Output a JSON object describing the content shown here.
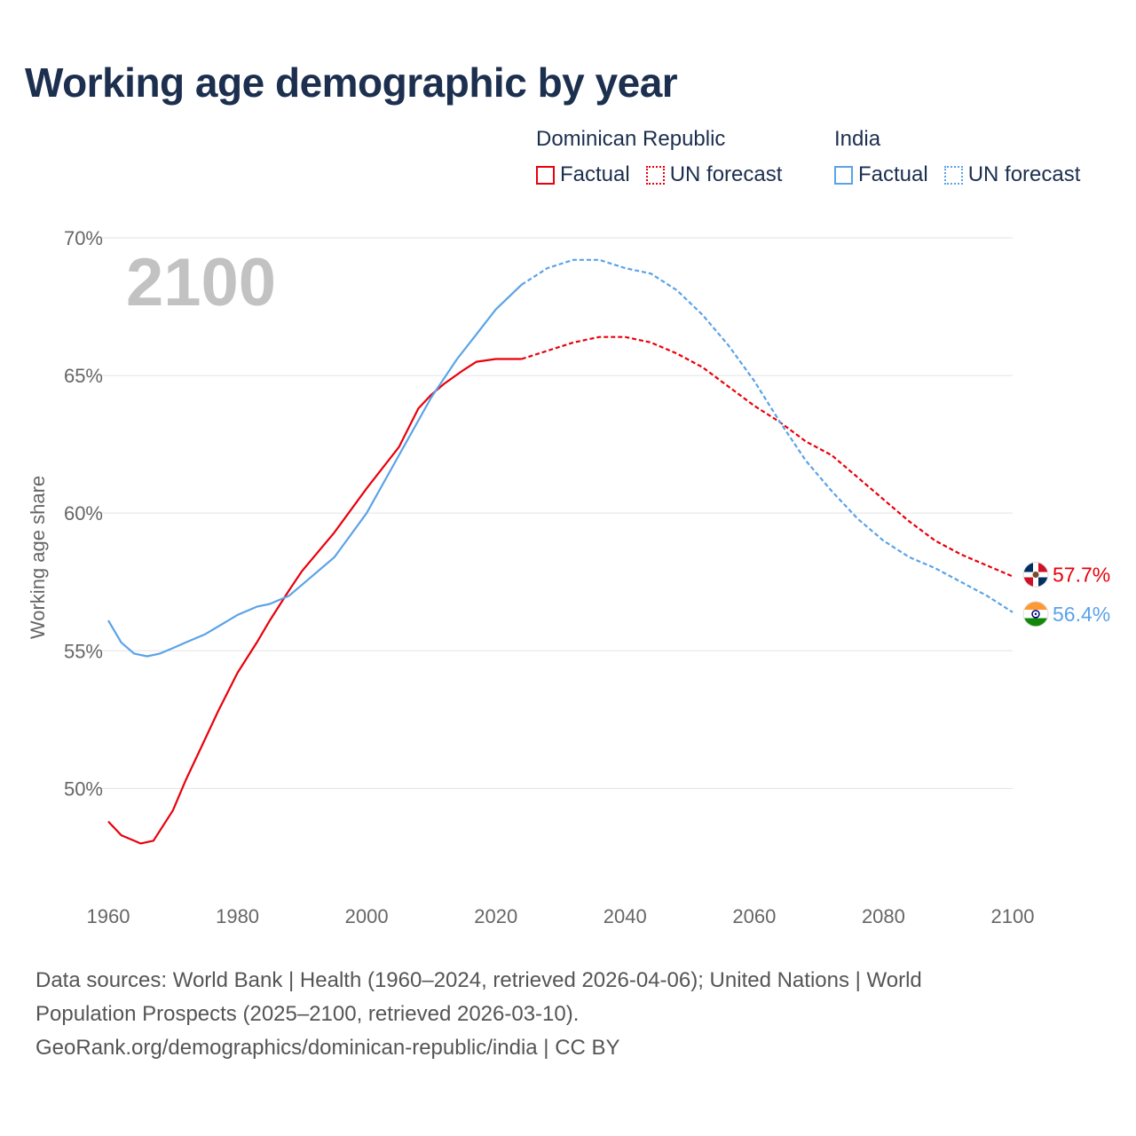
{
  "title": "Working age demographic by year",
  "legend": {
    "groups": [
      {
        "name": "Dominican Republic",
        "factual_label": "Factual",
        "forecast_label": "UN forecast",
        "color": "#e8000b"
      },
      {
        "name": "India",
        "factual_label": "Factual",
        "forecast_label": "UN forecast",
        "color": "#5aa3e8"
      }
    ]
  },
  "year_watermark": "2100",
  "footer": {
    "line1": "Data sources: World Bank | Health (1960–2024, retrieved 2026-04-06); United Nations | World",
    "line2": "Population Prospects (2025–2100, retrieved 2026-03-10).",
    "line3": "GeoRank.org/demographics/dominican-republic/india | CC BY"
  },
  "chart_data": {
    "type": "line",
    "title": "Working age demographic by year",
    "xlabel": "",
    "ylabel": "Working age share",
    "xlim": [
      1960,
      2100
    ],
    "ylim": [
      46.4,
      70
    ],
    "x_ticks": [
      1960,
      1980,
      2000,
      2020,
      2040,
      2060,
      2080,
      2100
    ],
    "x_tick_labels": [
      "1960",
      "1980",
      "2000",
      "2020",
      "2040",
      "2060",
      "2080",
      "2100"
    ],
    "y_ticks": [
      50,
      55,
      60,
      65,
      70
    ],
    "y_tick_labels": [
      "50%",
      "55%",
      "60%",
      "65%",
      "70%"
    ],
    "grid": true,
    "factual_end_year": 2024,
    "series": [
      {
        "name": "Dominican Republic",
        "color": "#e8000b",
        "end_label": "57.7%",
        "flag": "dominican-republic",
        "x": [
          1960,
          1962,
          1964,
          1965,
          1967,
          1970,
          1972,
          1975,
          1977,
          1980,
          1983,
          1985,
          1988,
          1990,
          1995,
          2000,
          2005,
          2008,
          2010,
          2012,
          2015,
          2017,
          2020,
          2024,
          2028,
          2032,
          2036,
          2040,
          2044,
          2048,
          2052,
          2056,
          2060,
          2064,
          2068,
          2072,
          2076,
          2080,
          2084,
          2088,
          2092,
          2096,
          2100
        ],
        "values": [
          48.8,
          48.3,
          48.1,
          48.0,
          48.1,
          49.2,
          50.3,
          51.8,
          52.8,
          54.2,
          55.3,
          56.1,
          57.2,
          57.9,
          59.3,
          60.9,
          62.4,
          63.8,
          64.3,
          64.7,
          65.2,
          65.5,
          65.6,
          65.6,
          65.9,
          66.2,
          66.4,
          66.4,
          66.2,
          65.8,
          65.3,
          64.6,
          63.9,
          63.3,
          62.6,
          62.1,
          61.3,
          60.5,
          59.7,
          59.0,
          58.5,
          58.1,
          57.7
        ]
      },
      {
        "name": "India",
        "color": "#5aa3e8",
        "end_label": "56.4%",
        "flag": "india",
        "x": [
          1960,
          1962,
          1964,
          1966,
          1968,
          1970,
          1972,
          1975,
          1980,
          1983,
          1985,
          1988,
          1990,
          1995,
          2000,
          2005,
          2010,
          2014,
          2017,
          2020,
          2024,
          2028,
          2032,
          2036,
          2040,
          2044,
          2048,
          2052,
          2056,
          2060,
          2064,
          2068,
          2072,
          2076,
          2080,
          2084,
          2088,
          2092,
          2096,
          2100
        ],
        "values": [
          56.1,
          55.3,
          54.9,
          54.8,
          54.9,
          55.1,
          55.3,
          55.6,
          56.3,
          56.6,
          56.7,
          57.0,
          57.4,
          58.4,
          60.0,
          62.1,
          64.2,
          65.6,
          66.5,
          67.4,
          68.3,
          68.9,
          69.2,
          69.2,
          68.9,
          68.7,
          68.1,
          67.2,
          66.1,
          64.8,
          63.3,
          61.9,
          60.8,
          59.8,
          59.0,
          58.4,
          58.0,
          57.5,
          57.0,
          56.4
        ]
      }
    ]
  }
}
